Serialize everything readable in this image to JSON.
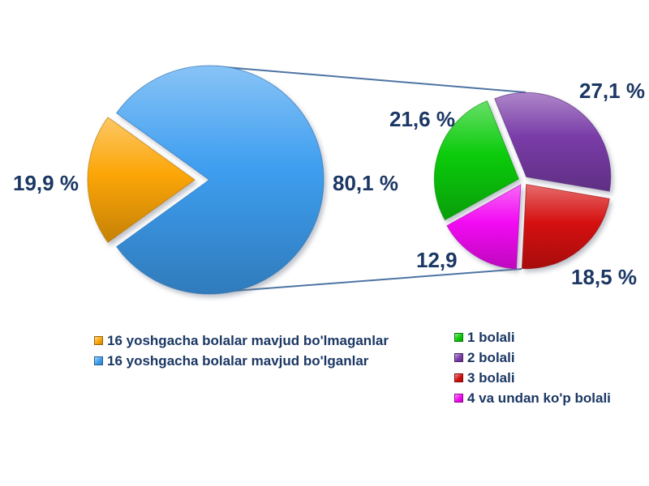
{
  "chart_data": {
    "type": "pie",
    "variant": "pie-of-pie",
    "background": "#ffffff",
    "label_color": "#1B3764",
    "connector_color": "#4D74A3",
    "main_pie": {
      "start_angle_deg": 144.2,
      "slices": [
        {
          "label": "16 yoshgacha bolalar mavjud bo'lganlar",
          "value": 80.1,
          "display": "80,1 %",
          "color": "#3E9EF0",
          "exploded": false
        },
        {
          "label": "16 yoshgacha bolalar mavjud bo'lmaganlar",
          "value": 19.9,
          "display": "19,9 %",
          "color": "#FCA608",
          "exploded": true
        }
      ]
    },
    "secondary_pie": {
      "start_angle_deg": 112,
      "slices": [
        {
          "label": "2 bolali",
          "value": 27.1,
          "display": "27,1 %",
          "color": "#7A3CA8"
        },
        {
          "label": "3 bolali",
          "value": 18.5,
          "display": "18,5 %",
          "color": "#D61010"
        },
        {
          "label": "4 va undan ko'p bolali",
          "value": 12.9,
          "display": "12,9",
          "color": "#F30AF3"
        },
        {
          "label": "1 bolali",
          "value": 21.6,
          "display": "21,6 %",
          "color": "#0BCB0B"
        }
      ]
    },
    "legend_left": {
      "items": [
        {
          "label": "16 yoshgacha bolalar mavjud bo'lmaganlar",
          "color": "#FCA608"
        },
        {
          "label": "16 yoshgacha bolalar mavjud bo'lganlar",
          "color": "#3E9EF0"
        }
      ]
    },
    "legend_right": {
      "items": [
        {
          "label": "1 bolali",
          "color": "#0BCB0B"
        },
        {
          "label": "2 bolali",
          "color": "#7A3CA8"
        },
        {
          "label": "3 bolali",
          "color": "#D61010"
        },
        {
          "label": "4 va undan ko'p bolali",
          "color": "#F30AF3"
        }
      ]
    }
  }
}
